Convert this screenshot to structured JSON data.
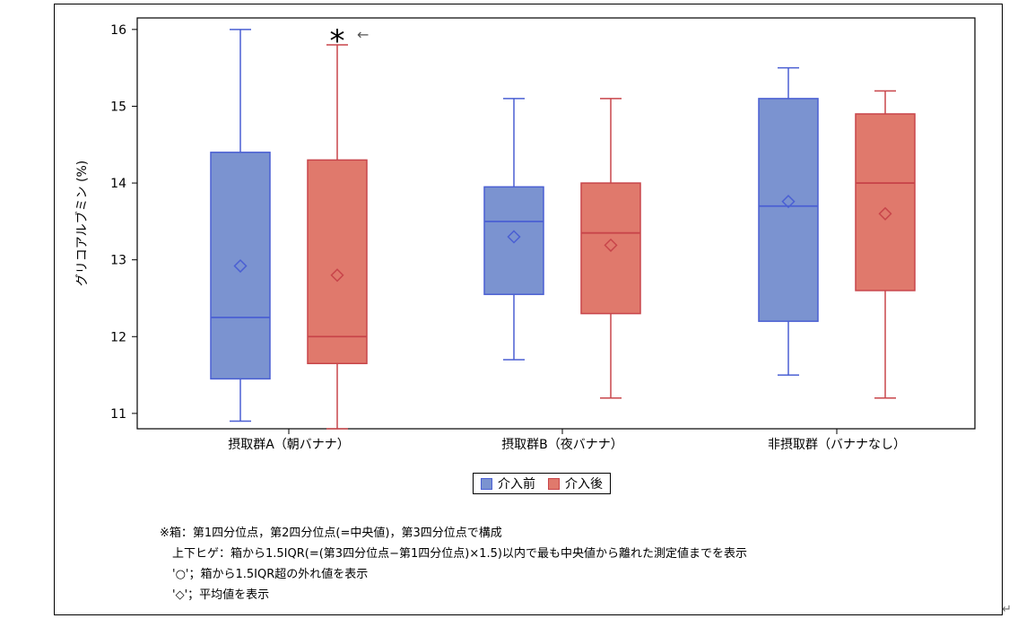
{
  "chart_data": {
    "type": "box",
    "ylabel": "グリコアルブミン (%)",
    "ylim": [
      10.8,
      16.15
    ],
    "yticks": [
      11,
      12,
      13,
      14,
      15,
      16
    ],
    "categories": [
      "摂取群A（朝バナナ）",
      "摂取群B（夜バナナ）",
      "非摂取群（バナナなし）"
    ],
    "grid": false,
    "legend_position": "bottom-center",
    "series": [
      {
        "name": "介入前",
        "color": "#4a5fd3",
        "fill": "#7b93d0",
        "boxes": [
          {
            "min": 10.9,
            "q1": 11.45,
            "median": 12.25,
            "q3": 14.4,
            "max": 16.0,
            "mean": 12.92
          },
          {
            "min": 11.7,
            "q1": 12.55,
            "median": 13.5,
            "q3": 13.95,
            "max": 15.1,
            "mean": 13.3
          },
          {
            "min": 11.5,
            "q1": 12.2,
            "median": 13.7,
            "q3": 15.1,
            "max": 15.5,
            "mean": 13.76
          }
        ]
      },
      {
        "name": "介入後",
        "color": "#c8454a",
        "fill": "#e0796c",
        "boxes": [
          {
            "min": 10.8,
            "q1": 11.65,
            "median": 12.0,
            "q3": 14.3,
            "max": 15.8,
            "mean": 12.8
          },
          {
            "min": 11.2,
            "q1": 12.3,
            "median": 13.35,
            "q3": 14.0,
            "max": 15.1,
            "mean": 13.19
          },
          {
            "min": 11.2,
            "q1": 12.6,
            "median": 14.0,
            "q3": 14.9,
            "max": 15.2,
            "mean": 13.6
          }
        ]
      }
    ],
    "annotations": [
      {
        "text": "*",
        "category_index": 0,
        "series_index": 1,
        "y": 15.93
      },
      {
        "text": "←",
        "category_index": 0,
        "series_index": 1,
        "y": 15.93
      }
    ]
  },
  "notes": [
    "※箱：第1四分位点，第2四分位点(=中央値)，第3四分位点で構成",
    "上下ヒゲ：箱から1.5IQR(=(第3四分位点−第1四分位点)×1.5)以内で最も中央値から離れた測定値までを表示",
    "'○'；箱から1.5IQR超の外れ値を表示",
    "'◇'；平均値を表示"
  ],
  "return_mark": "↵"
}
